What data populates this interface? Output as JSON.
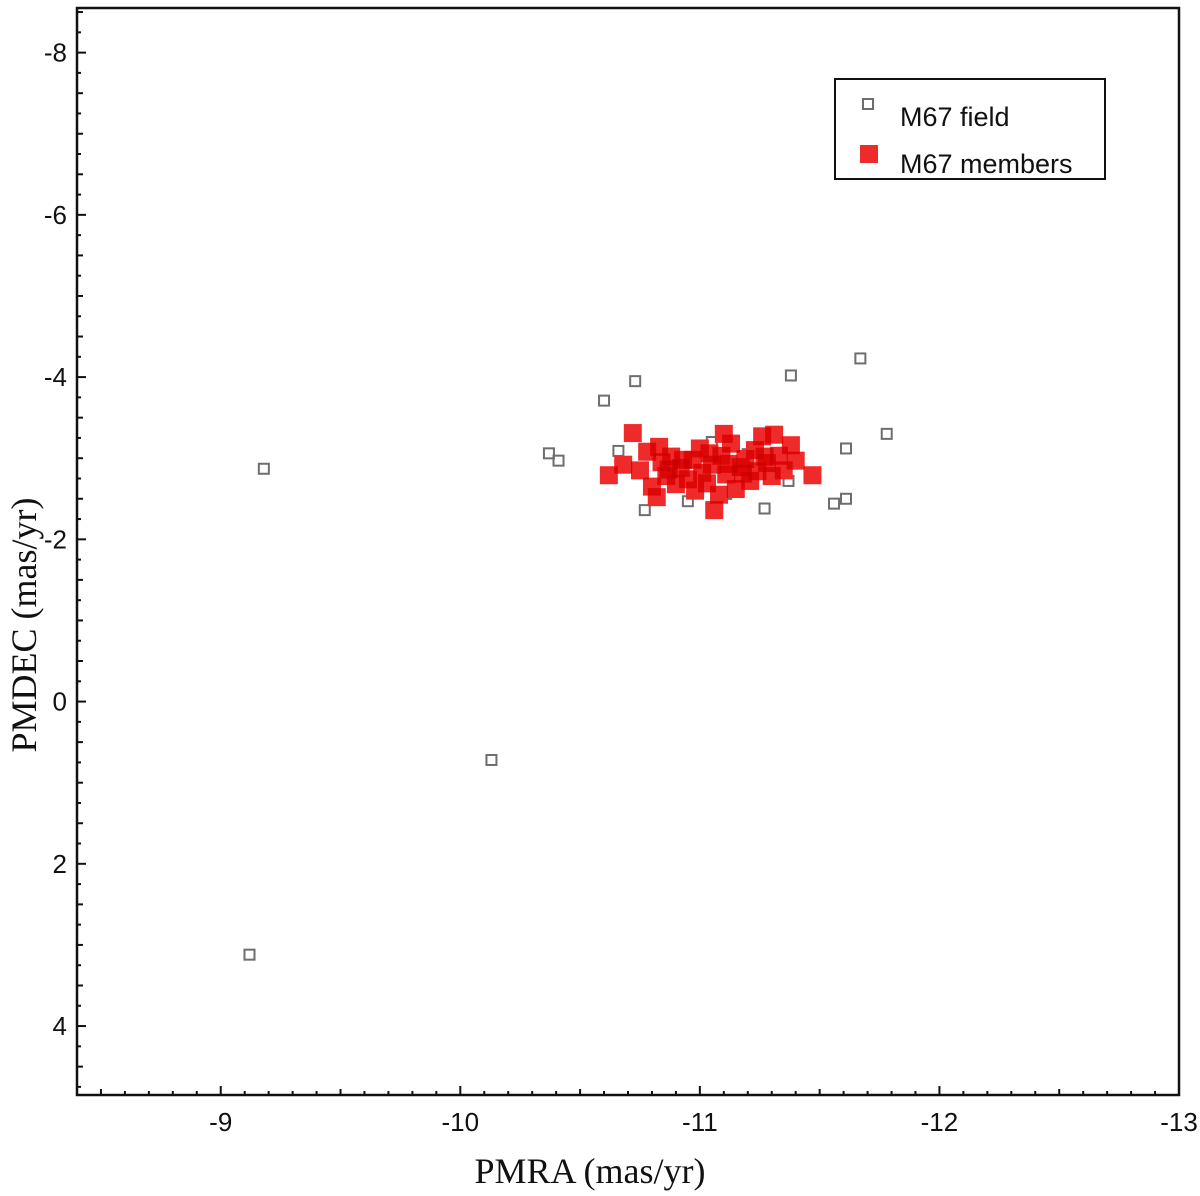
{
  "chart_data": {
    "type": "scatter",
    "xlabel": "PMRA (mas/yr)",
    "ylabel": "PMDEC (mas/yr)",
    "xlim": [
      -8.4,
      -13.0
    ],
    "ylim": [
      -8.55,
      4.85
    ],
    "x_reversed": true,
    "y_reversed": true,
    "grid": false,
    "legend_position": "top-right",
    "xticks": [
      -9,
      -10,
      -11,
      -12,
      -13
    ],
    "yticks": [
      -8,
      -6,
      -4,
      -2,
      0,
      2,
      4
    ],
    "x_tick_labels": [
      "-9",
      "-10",
      "-11",
      "-12",
      "-13"
    ],
    "y_tick_labels": [
      "-8",
      "-6",
      "-4",
      "-2",
      "0",
      "2",
      "4"
    ],
    "series": [
      {
        "name": "M67 field",
        "marker": "open-square",
        "color": "#6e6e6e",
        "points": [
          [
            -9.18,
            -2.87
          ],
          [
            -9.12,
            3.12
          ],
          [
            -10.13,
            0.72
          ],
          [
            -10.37,
            -3.06
          ],
          [
            -10.41,
            -2.97
          ],
          [
            -10.6,
            -3.71
          ],
          [
            -10.73,
            -3.95
          ],
          [
            -10.66,
            -3.09
          ],
          [
            -10.77,
            -2.36
          ],
          [
            -10.95,
            -2.47
          ],
          [
            -11.05,
            -3.2
          ],
          [
            -11.11,
            -2.56
          ],
          [
            -11.2,
            -3.05
          ],
          [
            -11.27,
            -2.38
          ],
          [
            -11.37,
            -2.72
          ],
          [
            -11.38,
            -4.02
          ],
          [
            -11.56,
            -2.44
          ],
          [
            -11.61,
            -2.5
          ],
          [
            -11.61,
            -3.12
          ],
          [
            -11.67,
            -4.23
          ],
          [
            -11.78,
            -3.3
          ]
        ]
      },
      {
        "name": "M67 members",
        "marker": "filled-square",
        "color": "#ee2a2a",
        "points": [
          [
            -10.62,
            -2.79
          ],
          [
            -10.72,
            -3.31
          ],
          [
            -10.68,
            -2.92
          ],
          [
            -10.75,
            -2.85
          ],
          [
            -10.78,
            -3.08
          ],
          [
            -10.8,
            -2.65
          ],
          [
            -10.82,
            -2.52
          ],
          [
            -10.84,
            -2.95
          ],
          [
            -10.86,
            -2.78
          ],
          [
            -10.88,
            -3.02
          ],
          [
            -10.9,
            -2.68
          ],
          [
            -10.92,
            -2.88
          ],
          [
            -10.95,
            -2.74
          ],
          [
            -10.97,
            -2.98
          ],
          [
            -10.98,
            -2.6
          ],
          [
            -11.0,
            -3.12
          ],
          [
            -11.01,
            -2.82
          ],
          [
            -11.03,
            -2.69
          ],
          [
            -11.05,
            -2.92
          ],
          [
            -11.06,
            -2.36
          ],
          [
            -11.08,
            -2.55
          ],
          [
            -11.09,
            -3.03
          ],
          [
            -11.1,
            -3.3
          ],
          [
            -11.11,
            -2.8
          ],
          [
            -11.13,
            -3.18
          ],
          [
            -11.15,
            -2.62
          ],
          [
            -11.17,
            -2.89
          ],
          [
            -11.19,
            -2.99
          ],
          [
            -11.21,
            -2.72
          ],
          [
            -11.23,
            -3.1
          ],
          [
            -11.24,
            -2.84
          ],
          [
            -11.26,
            -3.27
          ],
          [
            -11.28,
            -2.94
          ],
          [
            -11.3,
            -2.78
          ],
          [
            -11.31,
            -3.29
          ],
          [
            -11.33,
            -3.03
          ],
          [
            -11.35,
            -2.85
          ],
          [
            -11.38,
            -3.16
          ],
          [
            -11.4,
            -2.97
          ],
          [
            -11.47,
            -2.79
          ],
          [
            -10.93,
            -2.98
          ],
          [
            -10.87,
            -2.86
          ],
          [
            -11.04,
            -3.06
          ],
          [
            -11.12,
            -2.93
          ],
          [
            -11.18,
            -2.81
          ],
          [
            -10.83,
            -3.14
          ],
          [
            -11.27,
            -3.02
          ]
        ]
      }
    ]
  },
  "colors": {
    "field_marker": "#6e6e6e",
    "member_marker": "#ee2a2a",
    "member_overlap_dark": "#b02020",
    "axes": "#111111"
  }
}
